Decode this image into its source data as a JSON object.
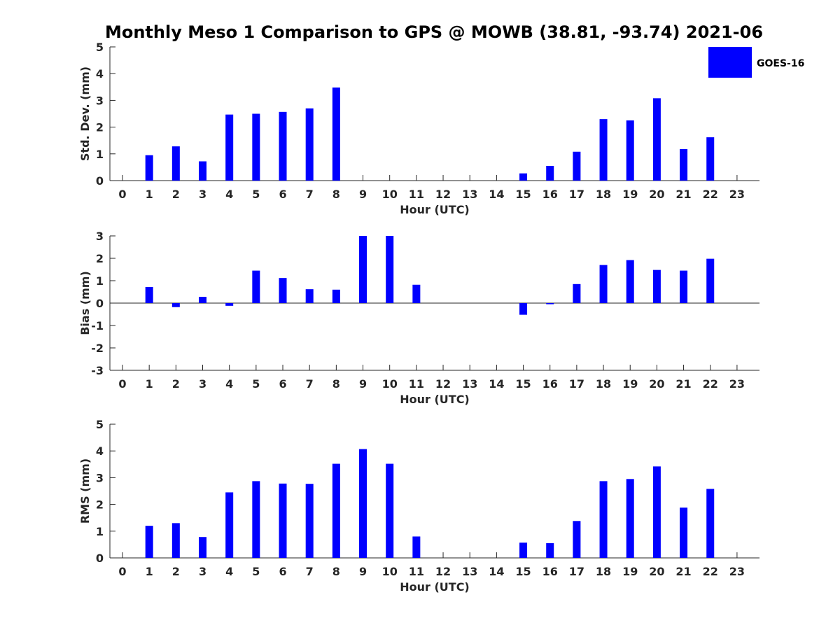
{
  "chart_data": {
    "title": "Monthly Meso 1 Comparison to GPS @ MOWB (38.81, -93.74) 2021-06",
    "legend": {
      "label": "GOES-16",
      "color": "#0000ff",
      "placement": "top-right"
    },
    "panels": [
      {
        "type": "bar",
        "xlabel": "Hour (UTC)",
        "ylabel": "Std. Dev. (mm)",
        "ylim": [
          0,
          5
        ],
        "yticks": [
          0,
          1,
          2,
          3,
          4,
          5
        ],
        "categories": [
          "0",
          "1",
          "2",
          "3",
          "4",
          "5",
          "6",
          "7",
          "8",
          "9",
          "10",
          "11",
          "12",
          "13",
          "14",
          "15",
          "16",
          "17",
          "18",
          "19",
          "20",
          "21",
          "22",
          "23"
        ],
        "values": [
          null,
          0.95,
          1.28,
          0.72,
          2.47,
          2.5,
          2.57,
          2.7,
          3.48,
          null,
          null,
          null,
          null,
          null,
          null,
          0.27,
          0.55,
          1.08,
          2.3,
          2.25,
          3.08,
          1.18,
          1.62,
          null
        ]
      },
      {
        "type": "bar",
        "xlabel": "Hour (UTC)",
        "ylabel": "Bias (mm)",
        "ylim": [
          -3,
          3
        ],
        "yticks": [
          -3,
          -2,
          -1,
          0,
          1,
          2,
          3
        ],
        "zero_line": true,
        "categories": [
          "0",
          "1",
          "2",
          "3",
          "4",
          "5",
          "6",
          "7",
          "8",
          "9",
          "10",
          "11",
          "12",
          "13",
          "14",
          "15",
          "16",
          "17",
          "18",
          "19",
          "20",
          "21",
          "22",
          "23"
        ],
        "values": [
          null,
          0.72,
          -0.18,
          0.28,
          -0.12,
          1.45,
          1.12,
          0.62,
          0.6,
          3.0,
          3.0,
          0.82,
          null,
          null,
          null,
          -0.52,
          -0.05,
          0.85,
          1.7,
          1.92,
          1.48,
          1.45,
          1.98,
          null
        ]
      },
      {
        "type": "bar",
        "xlabel": "Hour (UTC)",
        "ylabel": "RMS (mm)",
        "ylim": [
          0,
          5
        ],
        "yticks": [
          0,
          1,
          2,
          3,
          4,
          5
        ],
        "categories": [
          "0",
          "1",
          "2",
          "3",
          "4",
          "5",
          "6",
          "7",
          "8",
          "9",
          "10",
          "11",
          "12",
          "13",
          "14",
          "15",
          "16",
          "17",
          "18",
          "19",
          "20",
          "21",
          "22",
          "23"
        ],
        "values": [
          null,
          1.2,
          1.3,
          0.78,
          2.45,
          2.87,
          2.78,
          2.77,
          3.52,
          4.07,
          3.52,
          0.8,
          null,
          null,
          null,
          0.57,
          0.55,
          1.38,
          2.87,
          2.95,
          3.42,
          1.88,
          2.58,
          null
        ]
      }
    ]
  }
}
